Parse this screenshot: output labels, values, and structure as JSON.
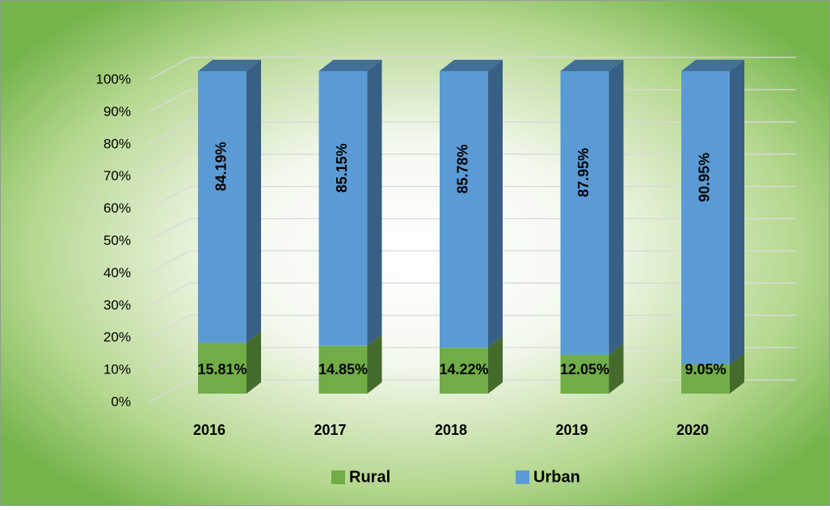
{
  "chart_data": {
    "type": "bar",
    "stacked": true,
    "categories": [
      "2016",
      "2017",
      "2018",
      "2019",
      "2020"
    ],
    "series": [
      {
        "name": "Rural",
        "color": "#70ad47",
        "values": [
          15.81,
          14.85,
          14.22,
          12.05,
          9.05
        ],
        "value_labels": [
          "15.81%",
          "14.85%",
          "14.22%",
          "12.05%",
          "9.05%"
        ]
      },
      {
        "name": "Urban",
        "color": "#5b9bd5",
        "values": [
          84.19,
          85.15,
          85.78,
          87.95,
          90.95
        ],
        "value_labels": [
          "84.19%",
          "85.15%",
          "85.78%",
          "87.95%",
          "90.95%"
        ]
      }
    ],
    "ylim": [
      0,
      100
    ],
    "yticks": [
      {
        "value": 0,
        "label": "0%"
      },
      {
        "value": 10,
        "label": "10%"
      },
      {
        "value": 20,
        "label": "20%"
      },
      {
        "value": 30,
        "label": "30%"
      },
      {
        "value": 40,
        "label": "40%"
      },
      {
        "value": 50,
        "label": "50%"
      },
      {
        "value": 60,
        "label": "60%"
      },
      {
        "value": 70,
        "label": "70%"
      },
      {
        "value": 80,
        "label": "80%"
      },
      {
        "value": 90,
        "label": "90%"
      },
      {
        "value": 100,
        "label": "100%"
      }
    ],
    "grid": true,
    "legend": "bottom"
  }
}
